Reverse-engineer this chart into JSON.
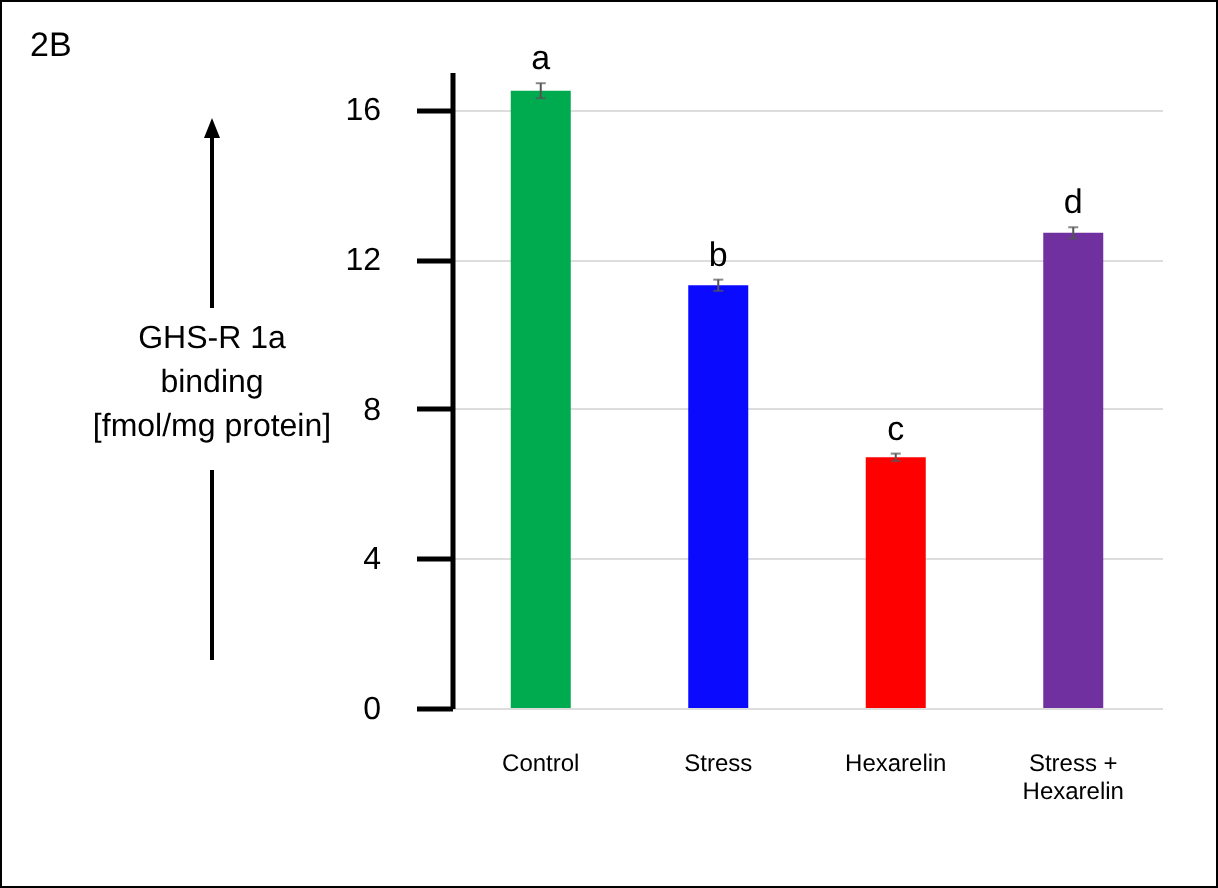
{
  "chart_data": {
    "type": "bar",
    "ylabel": "GHS-R 1a\nbinding\n[fmol/mg protein]",
    "categories": [
      "Control",
      "Stress",
      "Hexarelin",
      "Stress +\nHexarelin"
    ],
    "values": [
      16.5,
      11.3,
      6.7,
      12.7
    ],
    "colors": [
      "#00aa4f",
      "#0a0aff",
      "#ff0000",
      "#7030a0"
    ],
    "errors": [
      0.2,
      0.15,
      0.1,
      0.15
    ],
    "ylim": [
      0,
      17
    ],
    "yticks": [
      0,
      4,
      8,
      12,
      16
    ],
    "grid": "y",
    "annotations": [
      "2B",
      {
        "text": "a",
        "x": "Control",
        "y": 16.7
      },
      {
        "text": "b",
        "x": "Stress",
        "y": 11.45
      },
      {
        "text": "c",
        "x": "Hexarelin",
        "y": 6.8
      },
      {
        "text": "d",
        "x": "Stress +\nHexarelin",
        "y": 12.85
      }
    ]
  }
}
